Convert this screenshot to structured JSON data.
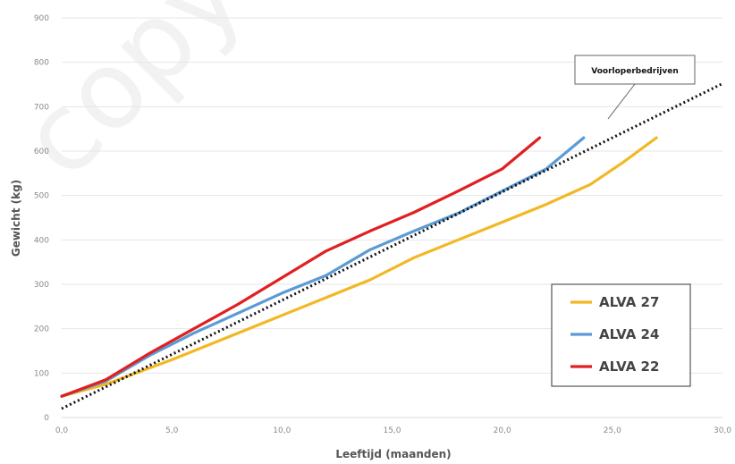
{
  "chart_data": {
    "type": "line",
    "xlabel": "Leeftijd (maanden)",
    "ylabel": "Gewicht (kg)",
    "xlim": [
      0,
      30
    ],
    "ylim": [
      0,
      900
    ],
    "x_ticks": [
      "0,0",
      "5,0",
      "10,0",
      "15,0",
      "20,0",
      "25,0",
      "30,0"
    ],
    "y_ticks": [
      "0",
      "100",
      "200",
      "300",
      "400",
      "500",
      "600",
      "700",
      "800",
      "900"
    ],
    "grid": "horizontal",
    "legend_position": "bottom-right",
    "series": [
      {
        "name": "ALVA 27",
        "color": "#f2b824",
        "points": [
          [
            0,
            48
          ],
          [
            2,
            75
          ],
          [
            5,
            130
          ],
          [
            8,
            190
          ],
          [
            11,
            250
          ],
          [
            14,
            310
          ],
          [
            16,
            360
          ],
          [
            18,
            400
          ],
          [
            20,
            440
          ],
          [
            22,
            480
          ],
          [
            24,
            525
          ],
          [
            25.5,
            575
          ],
          [
            27,
            630
          ]
        ]
      },
      {
        "name": "ALVA 24",
        "color": "#5b9bd5",
        "points": [
          [
            0,
            48
          ],
          [
            2,
            82
          ],
          [
            4,
            140
          ],
          [
            6,
            190
          ],
          [
            8,
            235
          ],
          [
            10,
            280
          ],
          [
            12,
            320
          ],
          [
            14,
            378
          ],
          [
            16,
            420
          ],
          [
            18,
            460
          ],
          [
            20,
            510
          ],
          [
            22,
            560
          ],
          [
            23.7,
            630
          ]
        ]
      },
      {
        "name": "ALVA 22",
        "color": "#e02020",
        "points": [
          [
            0,
            48
          ],
          [
            2,
            85
          ],
          [
            4,
            145
          ],
          [
            6,
            200
          ],
          [
            8,
            255
          ],
          [
            10,
            315
          ],
          [
            12,
            375
          ],
          [
            14,
            420
          ],
          [
            16,
            462
          ],
          [
            18,
            510
          ],
          [
            20,
            560
          ],
          [
            21.7,
            630
          ]
        ]
      }
    ],
    "reference_line": {
      "name": "Voorloperbedrijven",
      "color": "#111111",
      "style": "dotted",
      "points": [
        [
          0,
          20
        ],
        [
          30,
          752
        ]
      ]
    },
    "annotation": {
      "text": "Voorloperbedrijven"
    }
  },
  "watermark": {
    "text": "copy"
  }
}
